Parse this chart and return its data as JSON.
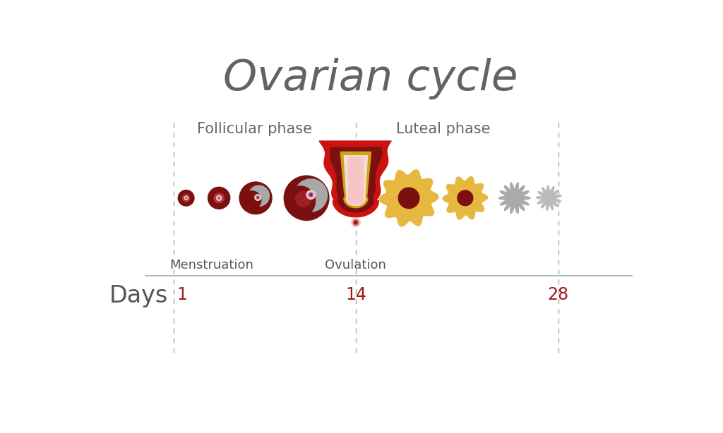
{
  "title": "Ovarian cycle",
  "title_fontsize": 44,
  "title_color": "#636363",
  "background_color": "#ffffff",
  "days_label": "Days",
  "days_color": "#555555",
  "day_marker_color": "#9b1b1b",
  "phase_follicular": "Follicular phase",
  "phase_luteal": "Luteal phase",
  "phase_color": "#666666",
  "phase_fontsize": 15,
  "menstruation_label": "Menstruation",
  "ovulation_label": "Ovulation",
  "label_color": "#555555",
  "label_fontsize": 13,
  "dashed_line_color": "#aaaaaa",
  "timeline_color": "#aaaaaa",
  "dark_red": "#7a1010",
  "medium_red": "#8B1A1A",
  "bright_red": "#cc1111",
  "gray_fill": "#a8a8a8",
  "gray2": "#b8b8b8",
  "light_gray": "#c8c8c8",
  "gold": "#E8B84B",
  "light_pink": "#f7c5c5",
  "pink_inner": "#fad9d9",
  "purple_dot": "#9966aa",
  "gold_line": "#d4a017",
  "cream": "#f5e6c8"
}
